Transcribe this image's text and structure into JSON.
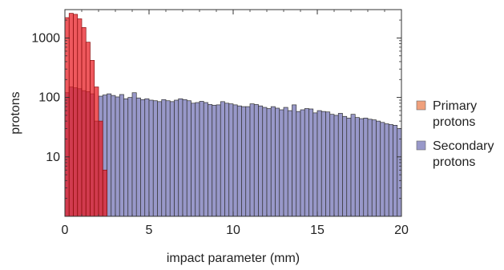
{
  "chart_data": {
    "type": "bar",
    "xlabel": "impact parameter (mm)",
    "ylabel": "protons",
    "xlim": [
      0,
      20
    ],
    "ylim": [
      1,
      3000
    ],
    "yscale": "log",
    "x_ticks": [
      0,
      5,
      10,
      15,
      20
    ],
    "y_ticks": [
      10,
      100,
      1000
    ],
    "bin_width": 0.25,
    "grid": false,
    "legend": "right",
    "series": [
      {
        "name": "Primary protons",
        "color": "#e8171f",
        "legend_color": "#f0a07c",
        "x": [
          0.0,
          0.25,
          0.5,
          0.75,
          1.0,
          1.25,
          1.5,
          1.75,
          2.0,
          2.25
        ],
        "values": [
          2200,
          2600,
          2500,
          2100,
          1500,
          850,
          420,
          150,
          40,
          6
        ]
      },
      {
        "name": "Secondary protons",
        "color": "#9898c9",
        "x": [
          0.0,
          0.25,
          0.5,
          0.75,
          1.0,
          1.25,
          1.5,
          1.75,
          2.0,
          2.25,
          2.5,
          2.75,
          3.0,
          3.25,
          3.5,
          3.75,
          4.0,
          4.25,
          4.5,
          4.75,
          5.0,
          5.25,
          5.5,
          5.75,
          6.0,
          6.25,
          6.5,
          6.75,
          7.0,
          7.25,
          7.5,
          7.75,
          8.0,
          8.25,
          8.5,
          8.75,
          9.0,
          9.25,
          9.5,
          9.75,
          10.0,
          10.25,
          10.5,
          10.75,
          11.0,
          11.25,
          11.5,
          11.75,
          12.0,
          12.25,
          12.5,
          12.75,
          13.0,
          13.25,
          13.5,
          13.75,
          14.0,
          14.25,
          14.5,
          14.75,
          15.0,
          15.25,
          15.5,
          15.75,
          16.0,
          16.25,
          16.5,
          16.75,
          17.0,
          17.25,
          17.5,
          17.75,
          18.0,
          18.25,
          18.5,
          18.75,
          19.0,
          19.25,
          19.5,
          19.75
        ],
        "values": [
          120,
          150,
          145,
          140,
          130,
          125,
          115,
          40,
          105,
          110,
          115,
          108,
          102,
          112,
          95,
          100,
          120,
          98,
          92,
          95,
          90,
          88,
          85,
          92,
          88,
          85,
          90,
          95,
          92,
          88,
          80,
          82,
          86,
          82,
          76,
          74,
          75,
          85,
          80,
          78,
          75,
          72,
          70,
          70,
          78,
          76,
          72,
          68,
          65,
          70,
          66,
          62,
          68,
          60,
          75,
          58,
          62,
          65,
          64,
          55,
          60,
          58,
          57,
          52,
          50,
          54,
          48,
          45,
          52,
          46,
          44,
          45,
          43,
          42,
          40,
          38,
          36,
          35,
          34,
          30
        ]
      }
    ]
  }
}
